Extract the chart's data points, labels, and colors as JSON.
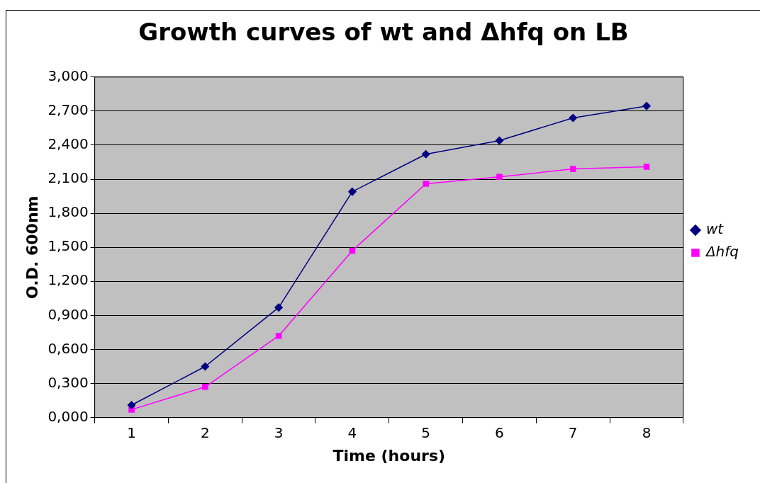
{
  "chart_data": {
    "type": "line",
    "title": "Growth curves of wt and Δhfq on LB",
    "xlabel": "Time (hours)",
    "ylabel": "O.D. 600nm",
    "categories": [
      "1",
      "2",
      "3",
      "4",
      "5",
      "6",
      "7",
      "8"
    ],
    "series": [
      {
        "name": "wt",
        "color": "#000080",
        "marker": "diamond",
        "values": [
          0.11,
          0.45,
          0.97,
          1.99,
          2.32,
          2.44,
          2.64,
          2.745
        ]
      },
      {
        "name": "Δhfq",
        "color": "#ff00ff",
        "marker": "square",
        "values": [
          0.07,
          0.27,
          0.72,
          1.47,
          2.06,
          2.12,
          2.19,
          2.21
        ]
      }
    ],
    "ylim": [
      0,
      3
    ],
    "yticks": [
      {
        "value": 0,
        "label": "0,000"
      },
      {
        "value": 0.3,
        "label": "0,300"
      },
      {
        "value": 0.6,
        "label": "0,600"
      },
      {
        "value": 0.9,
        "label": "0,900"
      },
      {
        "value": 1.2,
        "label": "1,200"
      },
      {
        "value": 1.5,
        "label": "1,500"
      },
      {
        "value": 1.8,
        "label": "1,800"
      },
      {
        "value": 2.1,
        "label": "2,100"
      },
      {
        "value": 2.4,
        "label": "2,400"
      },
      {
        "value": 2.7,
        "label": "2,700"
      },
      {
        "value": 3,
        "label": "3,000"
      }
    ],
    "grid": "y",
    "legend": "right",
    "line_style": "solid"
  }
}
